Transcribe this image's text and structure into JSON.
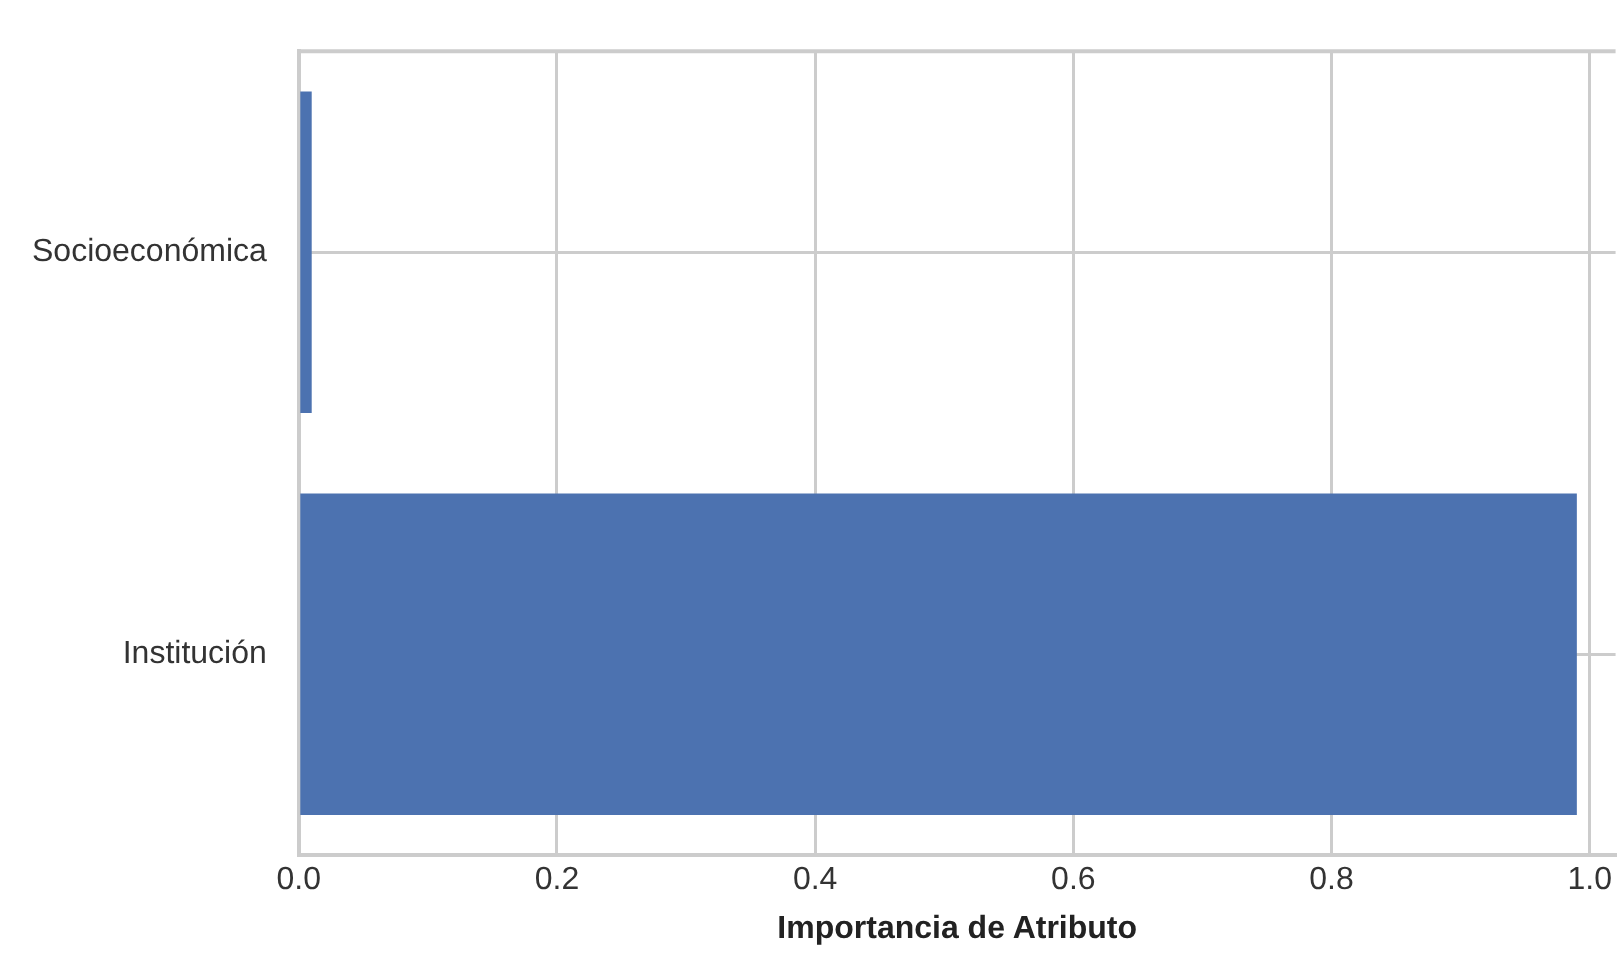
{
  "chart_data": {
    "type": "bar",
    "orientation": "horizontal",
    "xlabel": "Importancia de Atributo",
    "categories": [
      "Socioeconómica",
      "Institución"
    ],
    "values": [
      0.01,
      0.99
    ],
    "color": "#4c72b0",
    "xlim": [
      0,
      1.02
    ],
    "xticks": [
      {
        "value": 0,
        "label": "0.0"
      },
      {
        "value": 0.2,
        "label": "0.2"
      },
      {
        "value": 0.4,
        "label": "0.4"
      },
      {
        "value": 0.6,
        "label": "0.6"
      },
      {
        "value": 0.8,
        "label": "0.8"
      },
      {
        "value": 1,
        "label": "1.0"
      }
    ],
    "grid": true,
    "legend": false
  }
}
